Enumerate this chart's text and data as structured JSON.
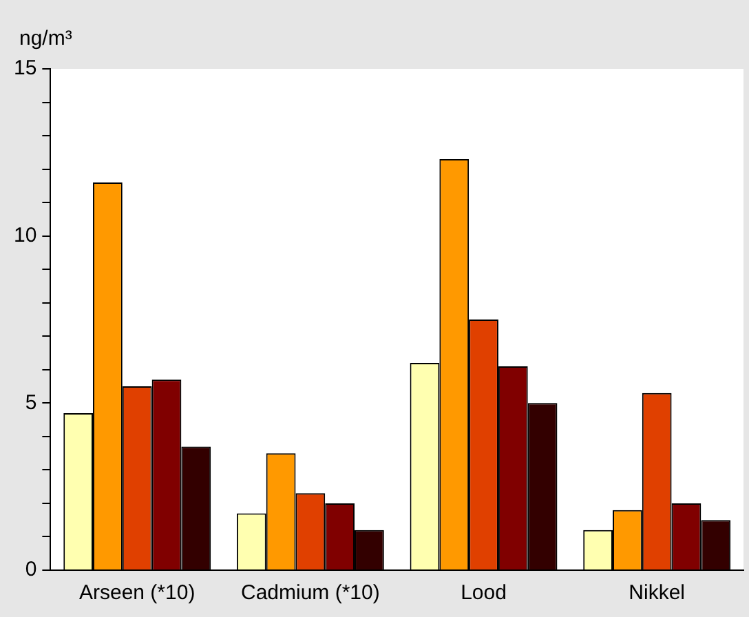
{
  "chart_data": {
    "type": "bar",
    "ylabel": "ng/m³",
    "categories": [
      "Arseen (*10)",
      "Cadmium (*10)",
      "Lood",
      "Nikkel"
    ],
    "series": [
      {
        "color": "#ffffb0",
        "values": [
          4.7,
          1.7,
          6.2,
          1.2
        ]
      },
      {
        "color": "#ff9900",
        "values": [
          11.6,
          3.5,
          12.3,
          1.8
        ]
      },
      {
        "color": "#e04000",
        "values": [
          5.5,
          2.3,
          7.5,
          5.3
        ]
      },
      {
        "color": "#800000",
        "values": [
          5.7,
          2.0,
          6.1,
          2.0
        ]
      },
      {
        "color": "#330000",
        "values": [
          3.7,
          1.2,
          5.0,
          1.5
        ]
      }
    ],
    "ylim": [
      0,
      15
    ],
    "yticks": [
      0,
      {
        "value": 1,
        "label": null
      },
      {
        "value": 2,
        "label": null
      },
      {
        "value": 3,
        "label": null
      },
      {
        "value": 4,
        "label": null
      },
      5,
      {
        "value": 6,
        "label": null
      },
      {
        "value": 7,
        "label": null
      },
      {
        "value": 8,
        "label": null
      },
      {
        "value": 9,
        "label": null
      },
      10,
      {
        "value": 11,
        "label": null
      },
      {
        "value": 12,
        "label": null
      },
      {
        "value": 13,
        "label": null
      },
      {
        "value": 14,
        "label": null
      },
      15
    ],
    "grid": false,
    "legend": false
  }
}
